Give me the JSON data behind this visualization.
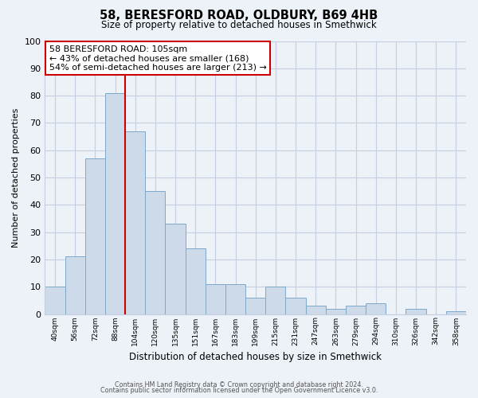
{
  "title1": "58, BERESFORD ROAD, OLDBURY, B69 4HB",
  "title2": "Size of property relative to detached houses in Smethwick",
  "xlabel": "Distribution of detached houses by size in Smethwick",
  "ylabel": "Number of detached properties",
  "bin_labels": [
    "40sqm",
    "56sqm",
    "72sqm",
    "88sqm",
    "104sqm",
    "120sqm",
    "135sqm",
    "151sqm",
    "167sqm",
    "183sqm",
    "199sqm",
    "215sqm",
    "231sqm",
    "247sqm",
    "263sqm",
    "279sqm",
    "294sqm",
    "310sqm",
    "326sqm",
    "342sqm",
    "358sqm"
  ],
  "bar_heights": [
    10,
    21,
    57,
    81,
    67,
    45,
    33,
    24,
    11,
    11,
    6,
    10,
    6,
    3,
    2,
    3,
    4,
    0,
    2,
    0,
    1
  ],
  "bar_color": "#cddaea",
  "bar_edge_color": "#7fa8c8",
  "reference_line_x": 3.5,
  "reference_line_color": "#cc0000",
  "annotation_text": "58 BERESFORD ROAD: 105sqm\n← 43% of detached houses are smaller (168)\n54% of semi-detached houses are larger (213) →",
  "annotation_box_facecolor": "white",
  "annotation_box_edgecolor": "#cc0000",
  "ylim": [
    0,
    100
  ],
  "yticks": [
    0,
    10,
    20,
    30,
    40,
    50,
    60,
    70,
    80,
    90,
    100
  ],
  "grid_color": "#c5cfe0",
  "footer1": "Contains HM Land Registry data © Crown copyright and database right 2024.",
  "footer2": "Contains public sector information licensed under the Open Government Licence v3.0.",
  "bg_color": "#edf1f8"
}
